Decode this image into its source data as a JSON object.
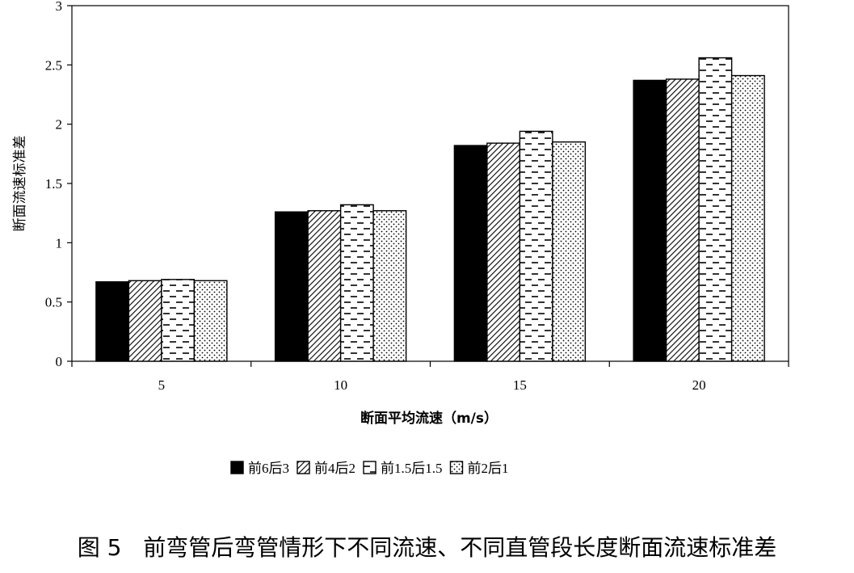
{
  "chart_data": {
    "type": "bar",
    "xlabel": "断面平均流速（m/s）",
    "ylabel": "断面流速标准差",
    "categories": [
      "5",
      "10",
      "15",
      "20"
    ],
    "ylim": [
      0,
      3
    ],
    "yticks": [
      "0",
      "0.5",
      "1",
      "1.5",
      "2",
      "2.5",
      "3"
    ],
    "grid": false,
    "legend_position": "bottom",
    "series": [
      {
        "name": "前6后3",
        "pattern": "solid",
        "color": "#000000",
        "values": [
          0.67,
          1.26,
          1.82,
          2.37
        ]
      },
      {
        "name": "前4后2",
        "pattern": "diagonal",
        "color": "#000000",
        "values": [
          0.68,
          1.27,
          1.84,
          2.38
        ]
      },
      {
        "name": "前1.5后1.5",
        "pattern": "dashes",
        "color": "#000000",
        "values": [
          0.69,
          1.32,
          1.94,
          2.56
        ]
      },
      {
        "name": "前2后1",
        "pattern": "dots",
        "color": "#000000",
        "values": [
          0.68,
          1.27,
          1.85,
          2.41
        ]
      }
    ]
  },
  "caption": "图 5   前弯管后弯管情形下不同流速、不同直管段长度断面流速标准差"
}
